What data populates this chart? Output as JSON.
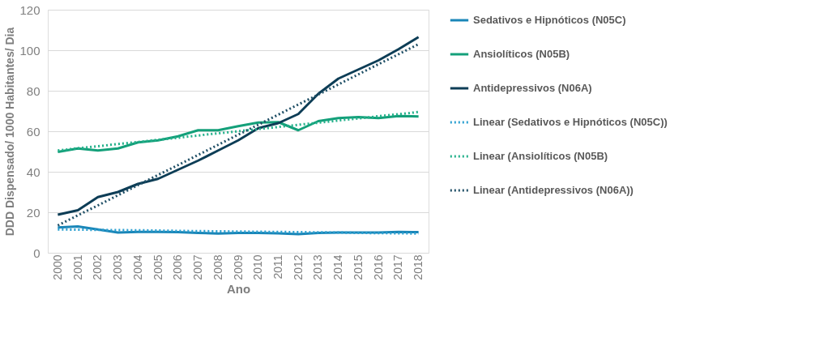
{
  "chart_data": {
    "type": "line",
    "xlabel": "Ano",
    "ylabel": "DDD Dispensado/ 1000 Habitantes/ Dia",
    "categories": [
      "2000",
      "2001",
      "2002",
      "2003",
      "2004",
      "2005",
      "2006",
      "2007",
      "2008",
      "2009",
      "2010",
      "2011",
      "2012",
      "2013",
      "2014",
      "2015",
      "2016",
      "2017",
      "2018"
    ],
    "ylim": [
      0,
      120
    ],
    "yticks": [
      0,
      20,
      40,
      60,
      80,
      100,
      120
    ],
    "grid": "y",
    "legend": "right",
    "line_style": "solid",
    "marker": "none",
    "series": [
      {
        "name": "Sedativos e Hipnóticos (N05C)",
        "color": "#1a86b8",
        "values": [
          12.5,
          13,
          11.5,
          10,
          10.3,
          10.3,
          10.2,
          9.8,
          9.5,
          9.8,
          9.8,
          9.6,
          9.2,
          9.8,
          10,
          10,
          10,
          10.3,
          10.2
        ]
      },
      {
        "name": "Ansiolíticos (N05B)",
        "color": "#14a07a",
        "values": [
          49.8,
          51.5,
          50.5,
          51.5,
          54.5,
          55.5,
          57.5,
          60.5,
          60.5,
          62.5,
          64.3,
          64.5,
          60.5,
          65,
          66.5,
          67,
          66.5,
          67.5,
          67.3
        ]
      },
      {
        "name": "Antidepressivos (N06A)",
        "color": "#0d3d56",
        "values": [
          18.8,
          21,
          27.5,
          30,
          34,
          36.5,
          41,
          45.5,
          50.5,
          55.5,
          61.5,
          64,
          68.5,
          78.5,
          86,
          90.5,
          95,
          100.5,
          106.5
        ]
      },
      {
        "name": "Linear (Sedativos e Hipnóticos (N05C))",
        "color": "#2a9fd0",
        "type": "line",
        "line_style": "dotted",
        "values": [
          11.5,
          11.4,
          11.3,
          11.2,
          11.1,
          11.0,
          10.8,
          10.7,
          10.6,
          10.5,
          10.4,
          10.3,
          10.2,
          10.1,
          10.0,
          9.8,
          9.7,
          9.6,
          9.5
        ]
      },
      {
        "name": "Linear (Ansiolíticos (N05B)",
        "color": "#22b08a",
        "type": "line",
        "line_style": "dotted",
        "values": [
          50.5,
          51.6,
          52.6,
          53.7,
          54.7,
          55.8,
          56.8,
          57.9,
          59.0,
          60.0,
          61.1,
          62.1,
          63.2,
          64.2,
          65.3,
          66.3,
          67.4,
          68.4,
          69.5
        ]
      },
      {
        "name": "Linear (Antidepressivos (N06A))",
        "color": "#1f4f66",
        "type": "line",
        "line_style": "dotted",
        "values": [
          13.5,
          18.5,
          23.4,
          28.4,
          33.4,
          38.4,
          43.3,
          48.3,
          53.3,
          58.3,
          63.2,
          68.2,
          73.2,
          78.1,
          83.1,
          88.1,
          93.1,
          98.0,
          103.0
        ]
      }
    ]
  }
}
